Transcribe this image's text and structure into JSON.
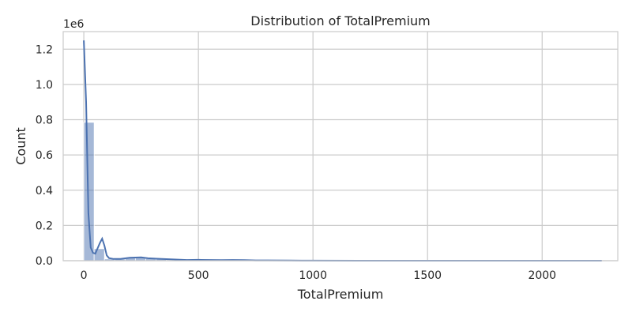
{
  "chart_data": {
    "type": "histogram",
    "title": "Distribution of TotalPremium",
    "xlabel": "TotalPremium",
    "ylabel": "Count",
    "y_offset_label": "1e6",
    "xlim": [
      -90,
      2330
    ],
    "ylim": [
      0,
      1300000
    ],
    "x_ticks": [
      0,
      500,
      1000,
      1500,
      2000
    ],
    "x_tick_labels": [
      "0",
      "500",
      "1000",
      "1500",
      "2000"
    ],
    "y_ticks": [
      0,
      200000,
      400000,
      600000,
      800000,
      1000000,
      1200000
    ],
    "y_tick_labels": [
      "0.0",
      "0.2",
      "0.4",
      "0.6",
      "0.8",
      "1.0",
      "1.2"
    ],
    "grid": true,
    "bar_color": "#4c72b0",
    "bar_alpha": 0.5,
    "line_color": "#4c72b0",
    "bins": [
      {
        "x0": 0,
        "x1": 45,
        "count": 785000
      },
      {
        "x0": 45,
        "x1": 90,
        "count": 68000
      },
      {
        "x0": 90,
        "x1": 135,
        "count": 10000
      },
      {
        "x0": 135,
        "x1": 180,
        "count": 10000
      },
      {
        "x0": 180,
        "x1": 225,
        "count": 17000
      },
      {
        "x0": 225,
        "x1": 270,
        "count": 19000
      },
      {
        "x0": 270,
        "x1": 315,
        "count": 12000
      },
      {
        "x0": 315,
        "x1": 360,
        "count": 10000
      },
      {
        "x0": 360,
        "x1": 405,
        "count": 5000
      },
      {
        "x0": 405,
        "x1": 450,
        "count": 3000
      },
      {
        "x0": 450,
        "x1": 495,
        "count": 3000
      },
      {
        "x0": 495,
        "x1": 540,
        "count": 6000
      },
      {
        "x0": 540,
        "x1": 585,
        "count": 4000
      },
      {
        "x0": 585,
        "x1": 630,
        "count": 3000
      },
      {
        "x0": 630,
        "x1": 675,
        "count": 4000
      },
      {
        "x0": 675,
        "x1": 720,
        "count": 3000
      },
      {
        "x0": 720,
        "x1": 765,
        "count": 2000
      },
      {
        "x0": 765,
        "x1": 810,
        "count": 2000
      },
      {
        "x0": 810,
        "x1": 855,
        "count": 1000
      },
      {
        "x0": 855,
        "x1": 900,
        "count": 1000
      }
    ],
    "kde": {
      "x": [
        0,
        10,
        20,
        30,
        40,
        50,
        60,
        70,
        80,
        90,
        100,
        110,
        130,
        160,
        200,
        250,
        280,
        320,
        380,
        450,
        500,
        550,
        600,
        650,
        700,
        750,
        800,
        900,
        1000,
        1200,
        1500,
        2000,
        2260
      ],
      "y": [
        1250000,
        900000,
        270000,
        75000,
        45000,
        40000,
        70000,
        100000,
        125000,
        85000,
        30000,
        15000,
        10000,
        10000,
        17000,
        19000,
        14000,
        11000,
        8000,
        4000,
        5000,
        4000,
        3000,
        4000,
        3000,
        2000,
        2000,
        1000,
        500,
        200,
        100,
        50,
        20
      ]
    }
  }
}
